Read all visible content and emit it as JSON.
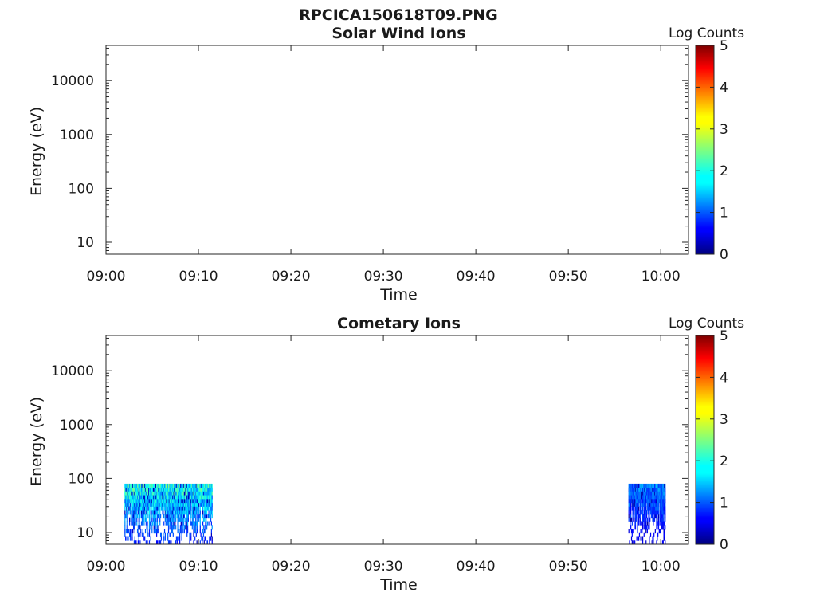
{
  "figure_title": "RPCICA150618T09.PNG",
  "chart_data": [
    {
      "type": "heatmap",
      "title": "Solar Wind Ions",
      "xlabel": "Time",
      "ylabel": "Energy (eV)",
      "yscale": "log",
      "xlim": [
        "09:00",
        "10:03"
      ],
      "ylim": [
        6,
        45000
      ],
      "x_ticks": [
        "09:00",
        "09:10",
        "09:20",
        "09:30",
        "09:40",
        "09:50",
        "10:00"
      ],
      "y_ticks": [
        "10",
        "100",
        "1000",
        "10000"
      ],
      "colorbar": {
        "label": "Log Counts",
        "range": [
          0,
          5
        ],
        "ticks": [
          "0",
          "1",
          "2",
          "3",
          "4",
          "5"
        ],
        "colormap": "jet"
      },
      "data_blocks": []
    },
    {
      "type": "heatmap",
      "title": "Cometary Ions",
      "xlabel": "Time",
      "ylabel": "Energy (eV)",
      "yscale": "log",
      "xlim": [
        "09:00",
        "10:03"
      ],
      "ylim": [
        6,
        45000
      ],
      "x_ticks": [
        "09:00",
        "09:10",
        "09:20",
        "09:30",
        "09:40",
        "09:50",
        "10:00"
      ],
      "y_ticks": [
        "10",
        "100",
        "1000",
        "10000"
      ],
      "colorbar": {
        "label": "Log Counts",
        "range": [
          0,
          5
        ],
        "ticks": [
          "0",
          "1",
          "2",
          "3",
          "4",
          "5"
        ],
        "colormap": "jet"
      },
      "data_blocks": [
        {
          "t_start": "09:02",
          "t_end": "09:11.5",
          "e_min": 6,
          "e_max": 80,
          "log_counts_range": [
            0.3,
            2.6
          ]
        },
        {
          "t_start": "09:56.5",
          "t_end": "10:00.5",
          "e_min": 6,
          "e_max": 80,
          "log_counts_range": [
            0.2,
            1.6
          ]
        }
      ]
    }
  ]
}
